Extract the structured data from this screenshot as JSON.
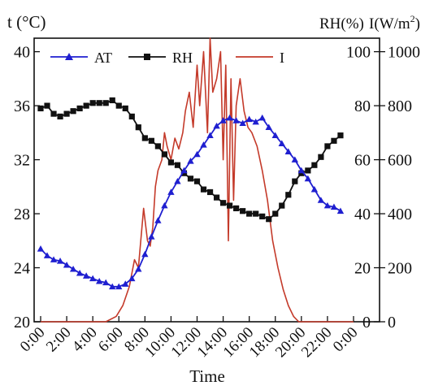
{
  "chart_data": {
    "type": "line",
    "title": "",
    "xlabel": "Time",
    "xlim": [
      0,
      24
    ],
    "x_ticks": [
      0,
      2,
      4,
      6,
      8,
      10,
      12,
      14,
      16,
      18,
      20,
      22,
      24
    ],
    "x_tick_labels": [
      "0:00",
      "2:00",
      "4:00",
      "6:00",
      "8:00",
      "10:00",
      "12:00",
      "14:00",
      "16:00",
      "18:00",
      "20:00",
      "22:00",
      "0:00"
    ],
    "axes": {
      "left": {
        "label": "t (°C)",
        "range": [
          20,
          41
        ],
        "ticks": [
          20,
          24,
          28,
          32,
          36,
          40
        ]
      },
      "right_inner": {
        "label": "RH(%)",
        "range": [
          0,
          105
        ],
        "ticks": [
          0,
          20,
          40,
          60,
          80,
          100
        ]
      },
      "right_outer": {
        "label": "I(W/m",
        "label_sup": "2",
        "label_tail": ")",
        "range": [
          0,
          1050
        ],
        "ticks": [
          0,
          200,
          400,
          600,
          800,
          1000
        ]
      }
    },
    "legend_position": "top-left",
    "series": [
      {
        "name": "AT",
        "axis": "left",
        "color": "#1f1fd0",
        "marker": "triangle",
        "x": [
          0,
          0.5,
          1,
          1.5,
          2,
          2.5,
          3,
          3.5,
          4,
          4.5,
          5,
          5.5,
          6,
          6.5,
          7,
          7.5,
          8,
          8.5,
          9,
          9.5,
          10,
          10.5,
          11,
          11.5,
          12,
          12.5,
          13,
          13.5,
          14,
          14.5,
          15,
          15.5,
          16,
          16.5,
          17,
          17.5,
          18,
          18.5,
          19,
          19.5,
          20,
          20.5,
          21,
          21.5,
          22,
          22.5,
          23
        ],
        "values": [
          25.4,
          24.9,
          24.6,
          24.5,
          24.2,
          23.9,
          23.6,
          23.4,
          23.2,
          23.0,
          22.9,
          22.6,
          22.6,
          22.8,
          23.2,
          23.9,
          25.0,
          26.3,
          27.5,
          28.6,
          29.6,
          30.4,
          31.2,
          31.9,
          32.4,
          33.1,
          33.8,
          34.5,
          34.9,
          35.1,
          34.9,
          34.7,
          35.0,
          34.8,
          35.1,
          34.4,
          33.8,
          33.2,
          32.6,
          32.0,
          31.2,
          30.6,
          29.8,
          29.0,
          28.6,
          28.5,
          28.2
        ]
      },
      {
        "name": "RH",
        "axis": "right_inner",
        "color": "#111111",
        "marker": "square",
        "x": [
          0,
          0.5,
          1,
          1.5,
          2,
          2.5,
          3,
          3.5,
          4,
          4.5,
          5,
          5.5,
          6,
          6.5,
          7,
          7.5,
          8,
          8.5,
          9,
          9.5,
          10,
          10.5,
          11,
          11.5,
          12,
          12.5,
          13,
          13.5,
          14,
          14.5,
          15,
          15.5,
          16,
          16.5,
          17,
          17.5,
          18,
          18.5,
          19,
          19.5,
          20,
          20.5,
          21,
          21.5,
          22,
          22.5,
          23
        ],
        "values": [
          79,
          80,
          77,
          76,
          77,
          78,
          79,
          80,
          81,
          81,
          81,
          82,
          80,
          79,
          76,
          72,
          68,
          67,
          65,
          62,
          59,
          58,
          55,
          53,
          52,
          49,
          48,
          46,
          44,
          43,
          42,
          41,
          40,
          40,
          39,
          38,
          40,
          43,
          47,
          52,
          55,
          56,
          58,
          61,
          65,
          67,
          69
        ]
      },
      {
        "name": "I",
        "axis": "right_outer",
        "color": "#c43a2a",
        "marker": "none",
        "x": [
          0,
          5,
          5.8,
          6.3,
          6.8,
          7.2,
          7.5,
          7.9,
          8.2,
          8.4,
          8.6,
          8.8,
          9.0,
          9.3,
          9.5,
          9.7,
          10.0,
          10.3,
          10.6,
          10.9,
          11.1,
          11.4,
          11.7,
          12.0,
          12.2,
          12.5,
          12.8,
          13.0,
          13.2,
          13.5,
          13.8,
          14.0,
          14.2,
          14.4,
          14.6,
          14.8,
          15.0,
          15.3,
          15.6,
          15.9,
          16.2,
          16.6,
          17.0,
          17.4,
          17.8,
          18.2,
          18.6,
          19.0,
          19.4,
          19.8,
          24
        ],
        "values": [
          0,
          0,
          20,
          60,
          130,
          230,
          200,
          420,
          300,
          280,
          350,
          500,
          560,
          600,
          700,
          650,
          600,
          680,
          640,
          700,
          780,
          850,
          720,
          950,
          800,
          1000,
          700,
          1050,
          850,
          900,
          1000,
          600,
          950,
          300,
          900,
          450,
          800,
          900,
          780,
          720,
          700,
          650,
          560,
          450,
          300,
          200,
          120,
          60,
          20,
          0,
          0
        ]
      }
    ]
  }
}
